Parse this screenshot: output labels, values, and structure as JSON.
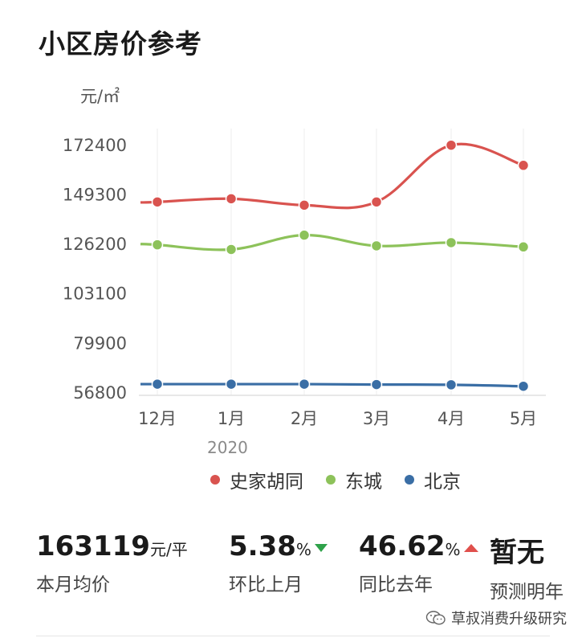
{
  "title": "小区房价参考",
  "chart_data": {
    "type": "line",
    "unit_label": "元/㎡",
    "categories": [
      "12月",
      "1月",
      "2月",
      "3月",
      "4月",
      "5月"
    ],
    "year_label": "2020",
    "y_ticks": [
      56800,
      79900,
      103100,
      126200,
      149300,
      172400
    ],
    "ylim": [
      56800,
      172400
    ],
    "series": [
      {
        "name": "史家胡同",
        "color": "#d9534f",
        "values": [
          146000,
          147500,
          144500,
          146000,
          172500,
          163100
        ]
      },
      {
        "name": "东城",
        "color": "#8dc25a",
        "values": [
          126000,
          123800,
          130500,
          125500,
          127000,
          125000
        ]
      },
      {
        "name": "北京",
        "color": "#3a6ea5",
        "values": [
          60900,
          60900,
          60900,
          60700,
          60600,
          59900
        ]
      }
    ],
    "grid": "vertical"
  },
  "stats": [
    {
      "value": "163119",
      "unit": "元/平",
      "label": "本月均价",
      "trend": ""
    },
    {
      "value": "5.38",
      "unit": "%",
      "label": "环比上月",
      "trend": "down"
    },
    {
      "value": "46.62",
      "unit": "%",
      "label": "同比去年",
      "trend": "up"
    },
    {
      "value": "暂无",
      "unit": "",
      "label": "预测明年",
      "trend": ""
    }
  ],
  "watermark": "草叔消费升级研究",
  "colors": {
    "trend_down": "#2fa24a",
    "trend_up": "#e0504c"
  }
}
